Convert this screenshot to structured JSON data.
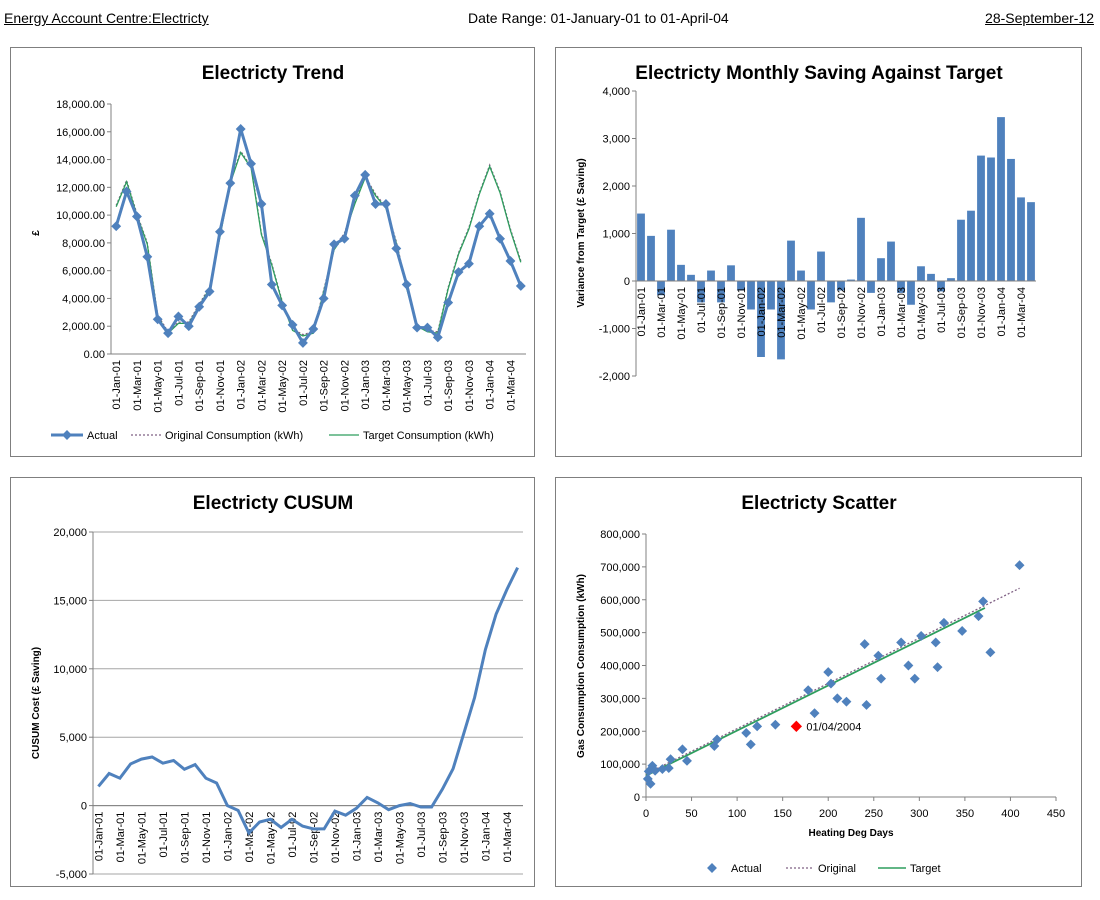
{
  "header": {
    "left": "Energy Account Centre:Electricty",
    "center": "Date Range: 01-January-01 to 01-April-04",
    "right": "28-September-12"
  },
  "colors": {
    "actual": "#4f81bd",
    "original": "#7f6084",
    "target": "#2e9e5e",
    "highlight": "#ff0000",
    "grid": "#a6a6a6"
  },
  "chart_data": [
    {
      "id": "trend",
      "type": "line",
      "title": "Electricty Trend",
      "ylabel": "£",
      "xlabel": "",
      "ylim": [
        0,
        18000
      ],
      "ytick_labels": [
        "0.00",
        "2,000.00",
        "4,000.00",
        "6,000.00",
        "8,000.00",
        "10,000.00",
        "12,000.00",
        "14,000.00",
        "16,000.00",
        "18,000.00"
      ],
      "xtick_labels": [
        "01-Jan-01",
        "01-Mar-01",
        "01-May-01",
        "01-Jul-01",
        "01-Sep-01",
        "01-Nov-01",
        "01-Jan-02",
        "01-Mar-02",
        "01-May-02",
        "01-Jul-02",
        "01-Sep-02",
        "01-Nov-02",
        "01-Jan-03",
        "01-Mar-03",
        "01-May-03",
        "01-Jul-03",
        "01-Sep-03",
        "01-Nov-03",
        "01-Jan-04",
        "01-Mar-04"
      ],
      "grid": false,
      "legend_position": "bottom",
      "series": [
        {
          "name": "Actual",
          "values": [
            9200,
            11700,
            9900,
            7000,
            2500,
            1500,
            2700,
            2000,
            3400,
            4500,
            8800,
            12300,
            16200,
            13700,
            10800,
            5000,
            3500,
            2100,
            800,
            1800,
            4000,
            7900,
            8300,
            11400,
            12900,
            10800,
            10800,
            7600,
            5000,
            1900,
            1900,
            1200,
            3700,
            5900,
            6500,
            9200,
            10100,
            8300,
            6700,
            4900
          ]
        },
        {
          "name": "Original Consumption (kWh)",
          "values": [
            10700,
            12500,
            10100,
            8000,
            2800,
            1600,
            2300,
            2300,
            3600,
            4800,
            8500,
            12400,
            14600,
            13500,
            8700,
            6500,
            3800,
            1800,
            1400,
            1600,
            4600,
            7600,
            8700,
            10900,
            12800,
            11500,
            10600,
            8100,
            4800,
            2100,
            1700,
            1600,
            4800,
            7300,
            9100,
            11600,
            13600,
            11700,
            9000,
            6700
          ]
        },
        {
          "name": "Target Consumption (kWh)",
          "values": [
            10600,
            12400,
            10000,
            7900,
            2700,
            1500,
            2200,
            2200,
            3500,
            4700,
            8400,
            12300,
            14500,
            13400,
            8600,
            6400,
            3700,
            1700,
            1300,
            1500,
            4500,
            7500,
            8600,
            10800,
            12700,
            11400,
            10500,
            8000,
            4700,
            2000,
            1600,
            1500,
            4700,
            7200,
            9000,
            11500,
            13500,
            11600,
            8900,
            6600
          ]
        }
      ]
    },
    {
      "id": "saving",
      "type": "bar",
      "title": "Electricty Monthly Saving Against Target",
      "ylabel": "Variance from Target (£ Saving)",
      "xlabel": "",
      "ylim": [
        -2000,
        4000
      ],
      "ytick_labels": [
        "-2,000",
        "-1,000",
        "0",
        "1,000",
        "2,000",
        "3,000",
        "4,000"
      ],
      "xtick_labels": [
        "01-Jan-01",
        "01-Mar-01",
        "01-May-01",
        "01-Jul-01",
        "01-Sep-01",
        "01-Nov-01",
        "01-Jan-02",
        "01-Mar-02",
        "01-May-02",
        "01-Jul-02",
        "01-Sep-02",
        "01-Nov-02",
        "01-Jan-03",
        "01-Mar-03",
        "01-May-03",
        "01-Jul-03",
        "01-Sep-03",
        "01-Nov-03",
        "01-Jan-04",
        "01-Mar-04"
      ],
      "grid": false,
      "values": [
        1420,
        950,
        -300,
        1080,
        340,
        130,
        -450,
        220,
        -450,
        330,
        -200,
        -600,
        -1600,
        -600,
        -1650,
        850,
        220,
        -600,
        620,
        -450,
        -200,
        30,
        1330,
        -250,
        480,
        830,
        -250,
        -500,
        310,
        150,
        -220,
        60,
        1290,
        1480,
        2640,
        2600,
        3450,
        2570,
        1760,
        1660
      ]
    },
    {
      "id": "cusum",
      "type": "line",
      "title": "Electricty CUSUM",
      "ylabel": "CUSUM Cost (£ Saving)",
      "xlabel": "",
      "ylim": [
        -5000,
        20000
      ],
      "ytick_labels": [
        "-5,000",
        "0",
        "5,000",
        "10,000",
        "15,000",
        "20,000"
      ],
      "xtick_labels": [
        "01-Jan-01",
        "01-Mar-01",
        "01-May-01",
        "01-Jul-01",
        "01-Sep-01",
        "01-Nov-01",
        "01-Jan-02",
        "01-Mar-02",
        "01-May-02",
        "01-Jul-02",
        "01-Sep-02",
        "01-Nov-02",
        "01-Jan-03",
        "01-Mar-03",
        "01-May-03",
        "01-Jul-03",
        "01-Sep-03",
        "01-Nov-03",
        "01-Jan-04",
        "01-Mar-04"
      ],
      "grid": true,
      "series": [
        {
          "name": "CUSUM",
          "values": [
            1400,
            2350,
            2000,
            3050,
            3400,
            3550,
            3100,
            3300,
            2650,
            3000,
            2000,
            1650,
            0,
            -350,
            -2000,
            -1200,
            -1000,
            -1600,
            -1000,
            -1500,
            -1700,
            -1700,
            -400,
            -700,
            -200,
            600,
            200,
            -300,
            0,
            150,
            -100,
            -100,
            1200,
            2700,
            5300,
            7900,
            11400,
            14000,
            15800,
            17400
          ]
        }
      ]
    },
    {
      "id": "scatter",
      "type": "scatter",
      "title": "Electricty Scatter",
      "xlabel": "Heating Deg Days",
      "ylabel": "Gas Consumption Consumption (kWh)",
      "xlim": [
        0,
        450
      ],
      "ylim": [
        0,
        800000
      ],
      "xtick_labels": [
        "0",
        "50",
        "100",
        "150",
        "200",
        "250",
        "300",
        "350",
        "400",
        "450"
      ],
      "ytick_labels": [
        "0",
        "100,000",
        "200,000",
        "300,000",
        "400,000",
        "500,000",
        "600,000",
        "700,000",
        "800,000"
      ],
      "grid": false,
      "legend_position": "bottom",
      "annotation": {
        "label": "01/04/2004",
        "x": 165,
        "y": 215000
      },
      "series": [
        {
          "name": "Actual",
          "points": [
            [
              2,
              55000
            ],
            [
              3,
              78000
            ],
            [
              5,
              40000
            ],
            [
              7,
              95000
            ],
            [
              10,
              80000
            ],
            [
              18,
              85000
            ],
            [
              25,
              88000
            ],
            [
              27,
              115000
            ],
            [
              40,
              145000
            ],
            [
              45,
              110000
            ],
            [
              75,
              155000
            ],
            [
              78,
              175000
            ],
            [
              110,
              195000
            ],
            [
              115,
              160000
            ],
            [
              122,
              215000
            ],
            [
              142,
              220000
            ],
            [
              178,
              325000
            ],
            [
              185,
              255000
            ],
            [
              200,
              380000
            ],
            [
              203,
              345000
            ],
            [
              210,
              300000
            ],
            [
              220,
              290000
            ],
            [
              240,
              465000
            ],
            [
              242,
              280000
            ],
            [
              255,
              430000
            ],
            [
              258,
              360000
            ],
            [
              280,
              470000
            ],
            [
              288,
              400000
            ],
            [
              295,
              360000
            ],
            [
              302,
              490000
            ],
            [
              318,
              470000
            ],
            [
              320,
              395000
            ],
            [
              327,
              530000
            ],
            [
              347,
              505000
            ],
            [
              365,
              550000
            ],
            [
              370,
              595000
            ],
            [
              378,
              440000
            ],
            [
              410,
              705000
            ]
          ]
        },
        {
          "name": "Original",
          "line": [
            [
              0,
              70000
            ],
            [
              410,
              635000
            ]
          ]
        },
        {
          "name": "Target",
          "line": [
            [
              0,
              65000
            ],
            [
              372,
              575000
            ]
          ]
        }
      ]
    }
  ]
}
